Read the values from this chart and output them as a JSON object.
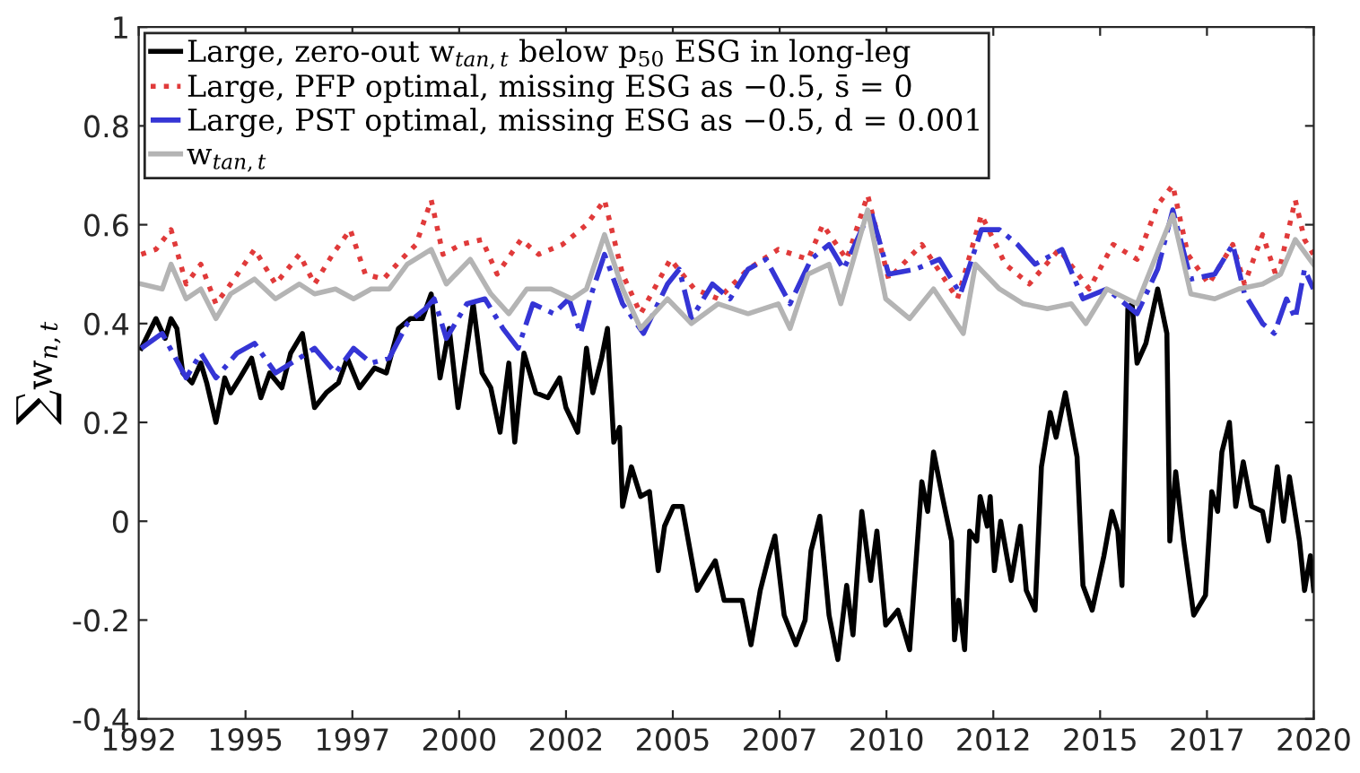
{
  "chart_data": {
    "type": "line",
    "ylabel": "∑w$_{n,t}$",
    "xlim": [
      1992,
      2020
    ],
    "ylim": [
      -0.4,
      1
    ],
    "xticks": [
      {
        "value": 1992,
        "label": "1992"
      },
      {
        "value": 1994.545,
        "label": "1995"
      },
      {
        "value": 1997.091,
        "label": "1997"
      },
      {
        "value": 1999.636,
        "label": "2000"
      },
      {
        "value": 2002.182,
        "label": "2002"
      },
      {
        "value": 2004.727,
        "label": "2005"
      },
      {
        "value": 2007.273,
        "label": "2007"
      },
      {
        "value": 2009.818,
        "label": "2010"
      },
      {
        "value": 2012.364,
        "label": "2012"
      },
      {
        "value": 2014.909,
        "label": "2015"
      },
      {
        "value": 2017.455,
        "label": "2017"
      },
      {
        "value": 2020,
        "label": "2020"
      }
    ],
    "yticks": [
      -0.4,
      -0.2,
      0,
      0.2,
      0.4,
      0.6,
      0.8,
      1
    ],
    "grid": false,
    "legend": "top left",
    "series": [
      {
        "name": "Large, zero-out w$_{tan,t}$ below p$_{50}$ ESG in long-leg",
        "color": "#000000",
        "line_style": "solid",
        "x": [
          1992.06,
          1992.41,
          1992.63,
          1992.77,
          1992.91,
          1993.05,
          1993.27,
          1993.48,
          1993.62,
          1993.84,
          1994.05,
          1994.19,
          1994.41,
          1994.69,
          1994.91,
          1995.12,
          1995.41,
          1995.62,
          1995.9,
          1996.19,
          1996.47,
          1996.76,
          1996.97,
          1997.26,
          1997.62,
          1997.9,
          1998.19,
          1998.47,
          1998.76,
          1998.97,
          1999.18,
          1999.4,
          1999.61,
          1999.82,
          1999.97,
          2000.18,
          2000.39,
          2000.61,
          2000.82,
          2000.96,
          2001.18,
          2001.46,
          2001.75,
          2002.03,
          2002.18,
          2002.46,
          2002.67,
          2002.82,
          2003.03,
          2003.17,
          2003.32,
          2003.46,
          2003.53,
          2003.74,
          2003.96,
          2004.17,
          2004.38,
          2004.53,
          2004.74,
          2004.95,
          2005.31,
          2005.52,
          2005.74,
          2005.95,
          2006.38,
          2006.59,
          2006.81,
          2007.02,
          2007.16,
          2007.38,
          2007.66,
          2007.88,
          2008.02,
          2008.23,
          2008.45,
          2008.66,
          2008.87,
          2009.02,
          2009.23,
          2009.44,
          2009.59,
          2009.8,
          2010.09,
          2010.37,
          2010.66,
          2010.8,
          2010.94,
          2011.15,
          2011.37,
          2011.44,
          2011.54,
          2011.68,
          2011.8,
          2011.97,
          2012.05,
          2012.22,
          2012.29,
          2012.39,
          2012.54,
          2012.79,
          2013.01,
          2013.15,
          2013.36,
          2013.51,
          2013.72,
          2013.86,
          2014.08,
          2014.36,
          2014.5,
          2014.72,
          2015.0,
          2015.19,
          2015.33,
          2015.43,
          2015.57,
          2015.67,
          2015.79,
          2016.0,
          2016.28,
          2016.5,
          2016.57,
          2016.71,
          2016.9,
          2017.14,
          2017.42,
          2017.57,
          2017.71,
          2017.81,
          2017.99,
          2018.14,
          2018.32,
          2018.52,
          2018.78,
          2018.92,
          2019.13,
          2019.28,
          2019.42,
          2019.66,
          2019.78,
          2019.92,
          2020.0
        ],
        "values": [
          0.35,
          0.41,
          0.37,
          0.41,
          0.39,
          0.3,
          0.28,
          0.32,
          0.28,
          0.2,
          0.29,
          0.26,
          0.29,
          0.33,
          0.25,
          0.3,
          0.27,
          0.34,
          0.38,
          0.23,
          0.26,
          0.28,
          0.33,
          0.27,
          0.31,
          0.3,
          0.39,
          0.41,
          0.41,
          0.46,
          0.29,
          0.39,
          0.23,
          0.35,
          0.44,
          0.3,
          0.27,
          0.18,
          0.32,
          0.16,
          0.34,
          0.26,
          0.25,
          0.29,
          0.23,
          0.18,
          0.35,
          0.26,
          0.33,
          0.39,
          0.16,
          0.19,
          0.03,
          0.11,
          0.05,
          0.06,
          -0.1,
          -0.01,
          0.03,
          0.03,
          -0.14,
          -0.11,
          -0.08,
          -0.16,
          -0.16,
          -0.25,
          -0.14,
          -0.07,
          -0.03,
          -0.19,
          -0.25,
          -0.2,
          -0.06,
          0.01,
          -0.19,
          -0.28,
          -0.13,
          -0.23,
          0.02,
          -0.12,
          -0.02,
          -0.21,
          -0.18,
          -0.26,
          0.08,
          0.02,
          0.14,
          0.05,
          -0.04,
          -0.24,
          -0.16,
          -0.26,
          -0.02,
          -0.04,
          0.05,
          -0.01,
          0.05,
          -0.1,
          0.0,
          -0.12,
          -0.01,
          -0.14,
          -0.18,
          0.11,
          0.22,
          0.17,
          0.26,
          0.13,
          -0.13,
          -0.18,
          -0.07,
          0.02,
          -0.02,
          -0.13,
          0.43,
          0.44,
          0.32,
          0.36,
          0.47,
          0.38,
          -0.04,
          0.1,
          -0.04,
          -0.19,
          -0.15,
          0.06,
          0.02,
          0.14,
          0.2,
          0.03,
          0.12,
          0.03,
          0.02,
          -0.04,
          0.11,
          0.0,
          0.09,
          -0.04,
          -0.14,
          -0.07,
          -0.14
        ]
      },
      {
        "name": "Large, PFP optimal, missing ESG as −0.5, s̄ = 0",
        "color": "#e03a3a",
        "line_style": "dotted",
        "x": [
          1992.06,
          1992.41,
          1992.77,
          1993.13,
          1993.48,
          1993.84,
          1994.19,
          1994.76,
          1995.26,
          1995.83,
          1996.19,
          1996.62,
          1997.04,
          1997.4,
          1997.83,
          1998.26,
          1998.61,
          1998.97,
          1999.25,
          1999.68,
          2000.18,
          2000.54,
          2001.11,
          2001.53,
          2002.1,
          2002.67,
          2003.1,
          2003.53,
          2003.96,
          2004.67,
          2005.24,
          2005.81,
          2006.52,
          2007.24,
          2007.95,
          2008.3,
          2008.87,
          2009.37,
          2009.87,
          2010.66,
          2011.51,
          2012.08,
          2012.65,
          2013.22,
          2013.93,
          2014.65,
          2015.22,
          2015.79,
          2016.28,
          2016.64,
          2017.0,
          2017.5,
          2018.07,
          2018.35,
          2018.78,
          2019.13,
          2019.56,
          2019.78,
          2019.99
        ],
        "values": [
          0.54,
          0.55,
          0.59,
          0.48,
          0.52,
          0.44,
          0.48,
          0.55,
          0.48,
          0.54,
          0.48,
          0.54,
          0.59,
          0.5,
          0.49,
          0.53,
          0.56,
          0.65,
          0.54,
          0.56,
          0.57,
          0.5,
          0.57,
          0.54,
          0.56,
          0.6,
          0.65,
          0.5,
          0.42,
          0.53,
          0.47,
          0.45,
          0.51,
          0.55,
          0.53,
          0.6,
          0.53,
          0.66,
          0.49,
          0.56,
          0.45,
          0.62,
          0.52,
          0.48,
          0.55,
          0.47,
          0.56,
          0.53,
          0.64,
          0.68,
          0.54,
          0.48,
          0.56,
          0.48,
          0.58,
          0.49,
          0.65,
          0.57,
          0.54
        ]
      },
      {
        "name": "Large, PST optimal, missing ESG as −0.5, d = 0.001",
        "color": "#3535d5",
        "line_style": "dashdot",
        "x": [
          1992.06,
          1992.56,
          1993.13,
          1993.48,
          1993.84,
          1994.34,
          1994.76,
          1995.26,
          1995.83,
          1996.19,
          1996.69,
          1997.12,
          1997.54,
          1997.97,
          1998.4,
          1998.83,
          1999.04,
          1999.33,
          1999.82,
          2000.25,
          2000.68,
          2001.04,
          2001.39,
          2001.89,
          2002.25,
          2002.53,
          2002.75,
          2003.1,
          2003.53,
          2004.03,
          2004.6,
          2004.88,
          2005.17,
          2005.67,
          2006.09,
          2006.52,
          2006.95,
          2007.52,
          2008.02,
          2008.45,
          2008.8,
          2009.44,
          2009.87,
          2010.51,
          2011.08,
          2011.58,
          2012.08,
          2012.51,
          2012.94,
          2013.36,
          2014.0,
          2014.5,
          2015.07,
          2015.79,
          2016.28,
          2016.64,
          2017.07,
          2017.64,
          2018.07,
          2018.35,
          2018.78,
          2019.06,
          2019.35,
          2019.56,
          2019.78,
          2019.99
        ],
        "values": [
          0.35,
          0.38,
          0.29,
          0.34,
          0.29,
          0.34,
          0.36,
          0.3,
          0.33,
          0.35,
          0.3,
          0.35,
          0.32,
          0.33,
          0.4,
          0.43,
          0.45,
          0.37,
          0.44,
          0.45,
          0.39,
          0.35,
          0.44,
          0.42,
          0.45,
          0.38,
          0.45,
          0.54,
          0.44,
          0.38,
          0.48,
          0.51,
          0.41,
          0.48,
          0.45,
          0.51,
          0.53,
          0.44,
          0.53,
          0.56,
          0.51,
          0.63,
          0.5,
          0.51,
          0.53,
          0.46,
          0.59,
          0.59,
          0.56,
          0.52,
          0.55,
          0.45,
          0.47,
          0.42,
          0.51,
          0.63,
          0.49,
          0.5,
          0.56,
          0.46,
          0.4,
          0.38,
          0.45,
          0.41,
          0.51,
          0.47
        ]
      },
      {
        "name": "w$_{tan,t}$",
        "color": "#b4b4b4",
        "line_style": "solid",
        "x": [
          1992.06,
          1992.56,
          1992.77,
          1993.13,
          1993.48,
          1993.84,
          1994.19,
          1994.76,
          1995.26,
          1995.83,
          1996.19,
          1996.69,
          1997.12,
          1997.54,
          1997.97,
          1998.4,
          1998.97,
          1999.33,
          1999.9,
          2000.39,
          2000.82,
          2001.25,
          2001.82,
          2002.32,
          2002.67,
          2003.1,
          2003.53,
          2003.96,
          2004.6,
          2005.17,
          2005.81,
          2006.52,
          2007.24,
          2007.52,
          2007.95,
          2008.45,
          2008.73,
          2009.37,
          2009.8,
          2010.37,
          2010.94,
          2011.65,
          2011.94,
          2012.51,
          2013.08,
          2013.65,
          2014.22,
          2014.57,
          2015.07,
          2015.79,
          2016.21,
          2016.64,
          2017.07,
          2017.64,
          2018.21,
          2018.78,
          2019.21,
          2019.56,
          2019.99
        ],
        "values": [
          0.48,
          0.47,
          0.52,
          0.45,
          0.47,
          0.41,
          0.46,
          0.49,
          0.45,
          0.48,
          0.46,
          0.47,
          0.45,
          0.47,
          0.47,
          0.52,
          0.55,
          0.48,
          0.53,
          0.46,
          0.42,
          0.47,
          0.47,
          0.45,
          0.47,
          0.58,
          0.47,
          0.39,
          0.45,
          0.4,
          0.44,
          0.42,
          0.44,
          0.39,
          0.5,
          0.52,
          0.44,
          0.63,
          0.45,
          0.41,
          0.47,
          0.38,
          0.52,
          0.47,
          0.44,
          0.43,
          0.44,
          0.4,
          0.47,
          0.44,
          0.53,
          0.62,
          0.46,
          0.45,
          0.47,
          0.48,
          0.5,
          0.57,
          0.52
        ]
      }
    ]
  }
}
